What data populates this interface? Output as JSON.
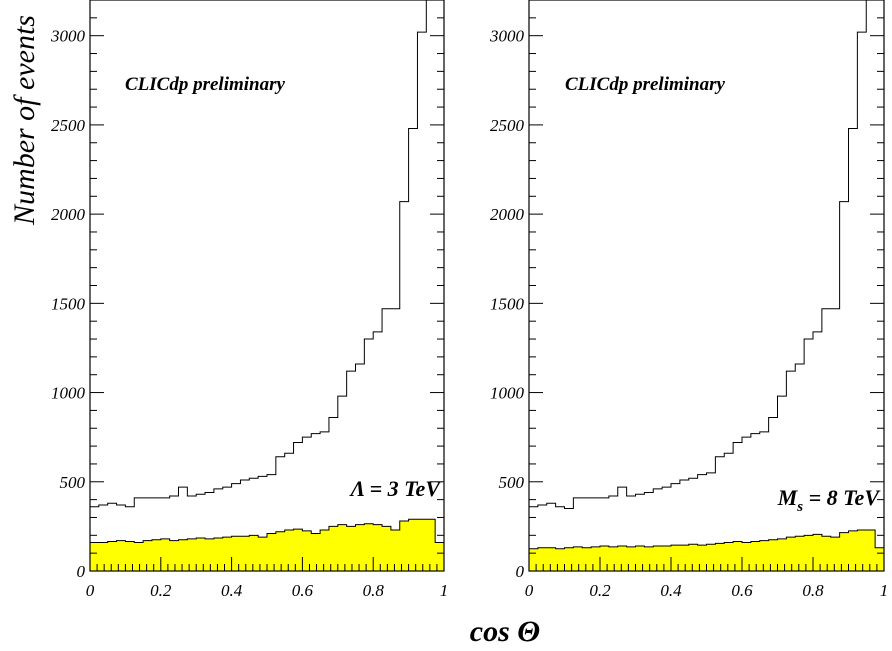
{
  "figure": {
    "ylabel": "Number of events",
    "xlabel": "cos Θ"
  },
  "chart_data": [
    {
      "type": "histogram",
      "preliminary_label": "CLICdp preliminary",
      "parameter_label": {
        "main": "Λ = 3 TeV",
        "sub": ""
      },
      "xlim": [
        0,
        1
      ],
      "ylim": [
        0,
        3200
      ],
      "x_ticks": [
        "0",
        "0.2",
        "0.4",
        "0.6",
        "0.8",
        "1"
      ],
      "x_tick_values": [
        0,
        0.2,
        0.4,
        0.6,
        0.8,
        1
      ],
      "y_ticks": [
        "0",
        "500",
        "1000",
        "1500",
        "2000",
        "2500",
        "3000"
      ],
      "y_tick_values": [
        0,
        500,
        1000,
        1500,
        2000,
        2500,
        3000
      ],
      "bin_width": 0.025,
      "series": [
        {
          "role": "outline-histogram",
          "color": "#000000",
          "values": [
            360,
            370,
            380,
            370,
            360,
            410,
            410,
            410,
            410,
            420,
            470,
            420,
            430,
            440,
            460,
            470,
            490,
            510,
            520,
            530,
            540,
            640,
            660,
            720,
            750,
            770,
            780,
            860,
            980,
            1120,
            1160,
            1300,
            1340,
            1470,
            1470,
            2070,
            2480,
            3020,
            3200,
            3200
          ]
        },
        {
          "role": "filled-histogram",
          "color": "#ffff00",
          "values": [
            160,
            160,
            165,
            170,
            165,
            160,
            170,
            175,
            180,
            170,
            175,
            180,
            185,
            180,
            185,
            190,
            195,
            195,
            200,
            190,
            210,
            220,
            230,
            235,
            225,
            210,
            230,
            250,
            260,
            250,
            260,
            265,
            260,
            250,
            230,
            280,
            290,
            290,
            290,
            160
          ]
        }
      ]
    },
    {
      "type": "histogram",
      "preliminary_label": "CLICdp preliminary",
      "parameter_label": {
        "main": "M",
        "sub": "s",
        "rest": " = 8 TeV"
      },
      "xlim": [
        0,
        1
      ],
      "ylim": [
        0,
        3200
      ],
      "x_ticks": [
        "0",
        "0.2",
        "0.4",
        "0.6",
        "0.8",
        "1"
      ],
      "x_tick_values": [
        0,
        0.2,
        0.4,
        0.6,
        0.8,
        1
      ],
      "y_ticks": [
        "0",
        "500",
        "1000",
        "1500",
        "2000",
        "2500",
        "3000"
      ],
      "y_tick_values": [
        0,
        500,
        1000,
        1500,
        2000,
        2500,
        3000
      ],
      "bin_width": 0.025,
      "series": [
        {
          "role": "outline-histogram",
          "color": "#000000",
          "values": [
            360,
            370,
            380,
            360,
            350,
            410,
            410,
            410,
            410,
            420,
            470,
            420,
            430,
            440,
            460,
            470,
            490,
            510,
            520,
            540,
            550,
            640,
            660,
            720,
            750,
            770,
            780,
            860,
            980,
            1120,
            1160,
            1300,
            1340,
            1470,
            1470,
            2070,
            2480,
            3020,
            3200,
            3200
          ]
        },
        {
          "role": "filled-histogram",
          "color": "#ffff00",
          "values": [
            125,
            130,
            130,
            125,
            130,
            135,
            130,
            135,
            140,
            135,
            140,
            135,
            140,
            135,
            140,
            140,
            145,
            145,
            150,
            145,
            150,
            155,
            160,
            165,
            160,
            165,
            170,
            175,
            180,
            190,
            195,
            200,
            205,
            195,
            190,
            215,
            225,
            230,
            230,
            130
          ]
        }
      ]
    }
  ]
}
